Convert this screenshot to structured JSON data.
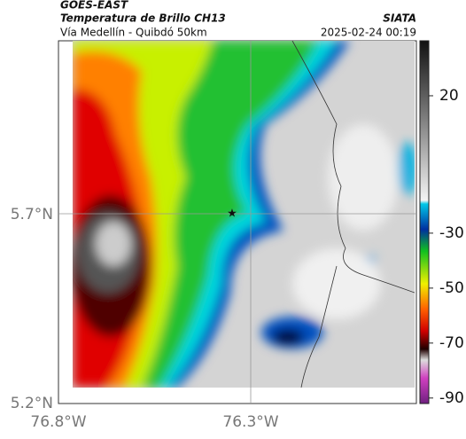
{
  "header": {
    "source": "GOES-EAST",
    "product": "Temperatura de Brillo CH13",
    "brand": "SIATA",
    "route": "Vía Medellín - Quibdó 50km",
    "datetime": "2025-02-24 00:19"
  },
  "map": {
    "lat_labels": [
      "5.7°N",
      "5.2°N"
    ],
    "lon_labels": [
      "76.8°W",
      "76.3°W"
    ]
  },
  "colorbar": {
    "lim": [
      -92,
      40
    ],
    "ticks": [
      20,
      -30,
      -50,
      -70,
      -90
    ]
  }
}
